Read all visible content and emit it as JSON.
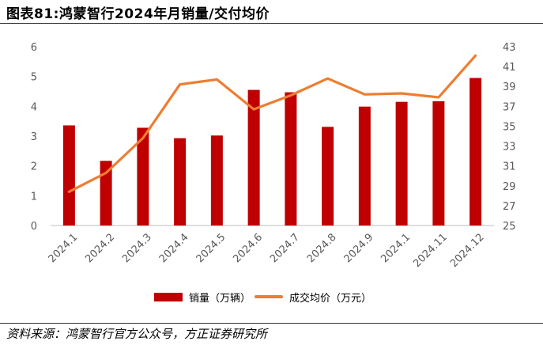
{
  "title": "图表81:鸿蒙智行2024年月销量/交付均价",
  "source": "资料来源：鸿蒙智行官方公众号，方正证券研究所",
  "colors": {
    "bar": "#c00000",
    "line": "#ed7d31",
    "text": "#595959"
  },
  "chart_data": {
    "type": "bar",
    "categories": [
      "2024.1",
      "2024.2",
      "2024.3",
      "2024.4",
      "2024.5",
      "2024.6",
      "2024.7",
      "2024.8",
      "2024.9",
      "2024.1",
      "2024.11",
      "2024.12"
    ],
    "series": [
      {
        "name": "销量（万辆）",
        "type": "bar",
        "axis": "left",
        "values": [
          3.36,
          2.17,
          3.28,
          2.93,
          3.02,
          4.55,
          4.47,
          3.31,
          3.99,
          4.15,
          4.17,
          4.95
        ]
      },
      {
        "name": "成交均价（万元）",
        "type": "line",
        "axis": "right",
        "values": [
          28.4,
          30.3,
          33.8,
          39.2,
          39.7,
          36.7,
          38.1,
          39.8,
          38.2,
          38.3,
          37.9,
          42.1
        ]
      }
    ],
    "y_left": {
      "lim": [
        0,
        6
      ],
      "ticks": [
        "0",
        "1",
        "2",
        "3",
        "4",
        "5",
        "6"
      ]
    },
    "y_right": {
      "lim": [
        25,
        43
      ],
      "ticks": [
        "25",
        "27",
        "29",
        "31",
        "33",
        "35",
        "37",
        "39",
        "41",
        "43"
      ]
    },
    "grid": false,
    "legend": "bottom"
  }
}
